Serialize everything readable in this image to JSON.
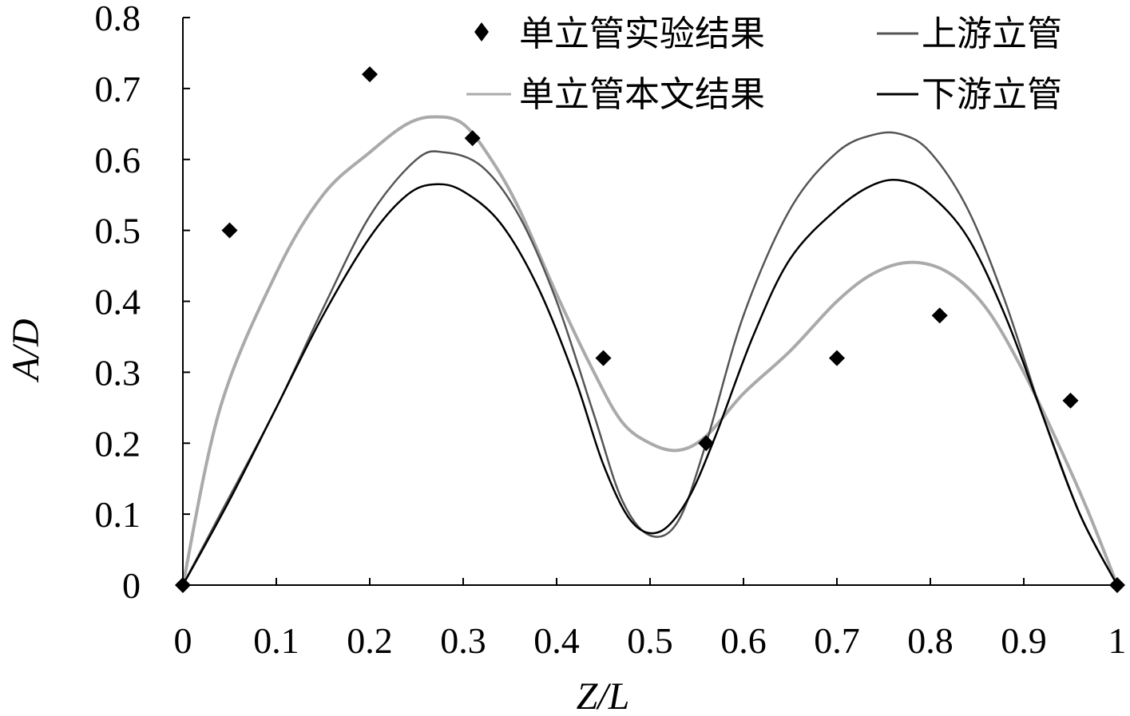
{
  "chart_data": {
    "type": "line",
    "xlabel": "Z/L",
    "ylabel": "A/D",
    "xlim": [
      0,
      1
    ],
    "ylim": [
      0,
      0.8
    ],
    "xticks": [
      "0",
      "0.1",
      "0.2",
      "0.3",
      "0.4",
      "0.5",
      "0.6",
      "0.7",
      "0.8",
      "0.9",
      "1"
    ],
    "yticks": [
      "0",
      "0.1",
      "0.2",
      "0.3",
      "0.4",
      "0.5",
      "0.6",
      "0.7",
      "0.8"
    ],
    "grid": false,
    "legend_position": "top-right",
    "series": [
      {
        "name": "单立管实验结果",
        "kind": "scatter",
        "marker": "diamond",
        "color": "#000000",
        "x": [
          0,
          0.05,
          0.2,
          0.31,
          0.45,
          0.56,
          0.7,
          0.81,
          0.95,
          1.0
        ],
        "y": [
          0,
          0.5,
          0.72,
          0.63,
          0.32,
          0.2,
          0.32,
          0.38,
          0.26,
          0
        ]
      },
      {
        "name": "上游立管",
        "kind": "line",
        "color": "#555555",
        "x": [
          0,
          0.04,
          0.1,
          0.15,
          0.2,
          0.25,
          0.28,
          0.32,
          0.36,
          0.4,
          0.44,
          0.47,
          0.5,
          0.53,
          0.56,
          0.6,
          0.65,
          0.7,
          0.74,
          0.77,
          0.8,
          0.84,
          0.88,
          0.92,
          0.96,
          1.0
        ],
        "y": [
          0,
          0.1,
          0.25,
          0.39,
          0.52,
          0.6,
          0.61,
          0.59,
          0.52,
          0.4,
          0.24,
          0.12,
          0.07,
          0.09,
          0.2,
          0.38,
          0.53,
          0.61,
          0.635,
          0.635,
          0.61,
          0.53,
          0.4,
          0.24,
          0.1,
          0
        ]
      },
      {
        "name": "单立管本文结果",
        "kind": "line",
        "color": "#aaaaaa",
        "x": [
          0,
          0.04,
          0.1,
          0.15,
          0.2,
          0.24,
          0.27,
          0.3,
          0.33,
          0.36,
          0.4,
          0.44,
          0.47,
          0.5,
          0.53,
          0.56,
          0.6,
          0.65,
          0.7,
          0.74,
          0.78,
          0.82,
          0.86,
          0.9,
          0.94,
          0.97,
          1.0
        ],
        "y": [
          0,
          0.25,
          0.44,
          0.55,
          0.61,
          0.65,
          0.66,
          0.65,
          0.6,
          0.53,
          0.41,
          0.3,
          0.23,
          0.2,
          0.19,
          0.21,
          0.27,
          0.33,
          0.4,
          0.44,
          0.455,
          0.44,
          0.39,
          0.3,
          0.19,
          0.1,
          0
        ]
      },
      {
        "name": "下游立管",
        "kind": "line",
        "color": "#000000",
        "x": [
          0,
          0.05,
          0.1,
          0.15,
          0.2,
          0.24,
          0.27,
          0.3,
          0.34,
          0.38,
          0.42,
          0.45,
          0.48,
          0.51,
          0.54,
          0.57,
          0.61,
          0.65,
          0.7,
          0.74,
          0.77,
          0.8,
          0.84,
          0.88,
          0.92,
          0.96,
          1.0
        ],
        "y": [
          0,
          0.12,
          0.25,
          0.38,
          0.49,
          0.55,
          0.565,
          0.555,
          0.51,
          0.42,
          0.29,
          0.17,
          0.09,
          0.075,
          0.12,
          0.21,
          0.35,
          0.46,
          0.53,
          0.565,
          0.57,
          0.55,
          0.49,
          0.38,
          0.24,
          0.1,
          0
        ]
      }
    ],
    "legend": [
      {
        "series": 0,
        "label": "单立管实验结果"
      },
      {
        "series": 1,
        "label": "上游立管"
      },
      {
        "series": 2,
        "label": "单立管本文结果"
      },
      {
        "series": 3,
        "label": "下游立管"
      }
    ]
  }
}
